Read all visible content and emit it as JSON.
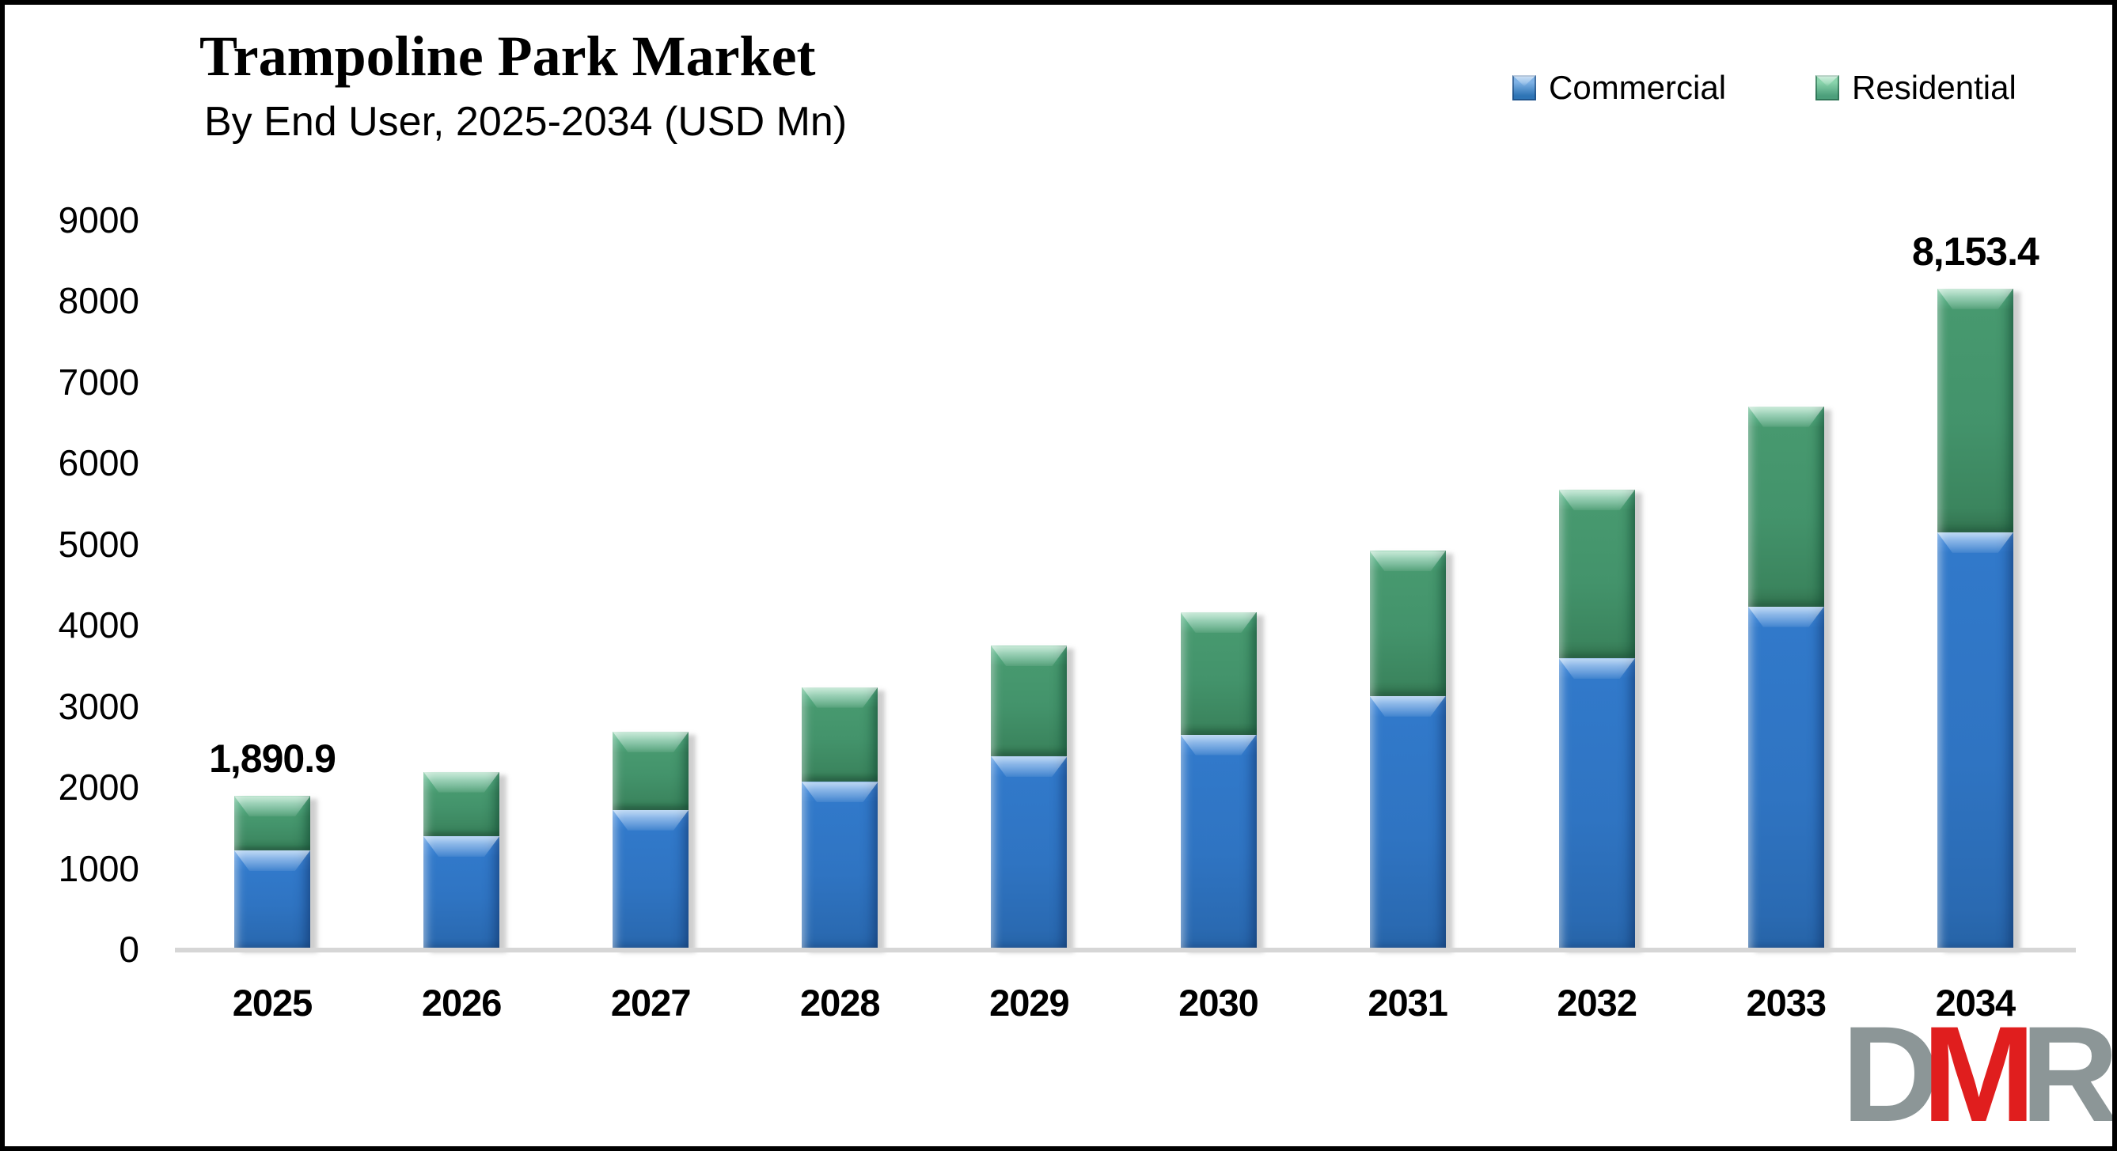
{
  "header": {
    "title": "Trampoline Park Market",
    "subtitle": "By End User, 2025-2034 (USD Mn)"
  },
  "legend": {
    "position": "top-right",
    "items": [
      {
        "label": "Commercial",
        "color": "#2E74B5"
      },
      {
        "label": "Residential",
        "color": "#4C9F7B"
      }
    ]
  },
  "chart_data": {
    "type": "bar",
    "stacked": true,
    "title": "Trampoline Park Market",
    "subtitle": "By End User, 2025-2034 (USD Mn)",
    "unit": "USD Mn",
    "categories": [
      "2025",
      "2026",
      "2027",
      "2028",
      "2029",
      "2030",
      "2031",
      "2032",
      "2033",
      "2034"
    ],
    "series": [
      {
        "name": "Commercial",
        "color": "#2E74B5",
        "values": [
          1220,
          1395,
          1720,
          2065,
          2380,
          2650,
          3125,
          3590,
          4230,
          5145
        ]
      },
      {
        "name": "Residential",
        "color": "#4C9F7B",
        "values": [
          670.9,
          795,
          965,
          1170,
          1365,
          1510,
          1790,
          2080,
          2470,
          3008.4
        ]
      }
    ],
    "totals": [
      1890.9,
      2190,
      2685,
      3235,
      3745,
      4160,
      4915,
      5670,
      6700,
      8153.4
    ],
    "data_labels": [
      {
        "category_index": 0,
        "text": "1,890.9"
      },
      {
        "category_index": 9,
        "text": "8,153.4"
      }
    ],
    "xlabel": "",
    "ylabel": "",
    "ylim": [
      0,
      9000
    ],
    "yticks": [
      0,
      1000,
      2000,
      3000,
      4000,
      5000,
      6000,
      7000,
      8000,
      9000
    ],
    "grid": false,
    "legend_position": "top-right"
  },
  "axis": {
    "line_color": "#D6D6D6"
  },
  "logo": {
    "letters": [
      {
        "char": "D",
        "color": "#8C9697"
      },
      {
        "char": "M",
        "color": "#E01E1E"
      },
      {
        "char": "R",
        "color": "#8C9697"
      }
    ]
  }
}
